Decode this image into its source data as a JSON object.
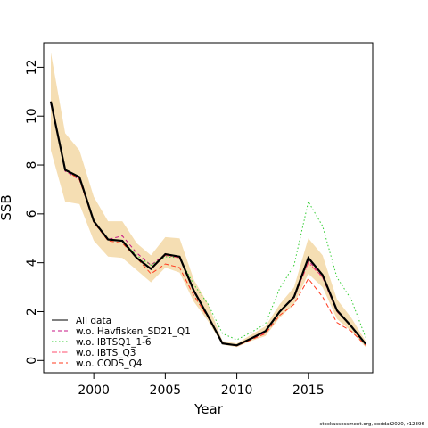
{
  "chart_data": {
    "type": "line",
    "title": "",
    "xlabel": "Year",
    "ylabel": "SSB",
    "xlim": [
      1996.5,
      2019.5
    ],
    "ylim": [
      -0.5,
      13
    ],
    "xticks": [
      2000,
      2005,
      2010,
      2015
    ],
    "yticks": [
      0,
      2,
      4,
      6,
      8,
      10,
      12
    ],
    "legend_position": "bottom-left",
    "x": [
      1997,
      1998,
      1999,
      2000,
      2001,
      2002,
      2003,
      2004,
      2005,
      2006,
      2007,
      2008,
      2009,
      2010,
      2011,
      2012,
      2013,
      2014,
      2015,
      2016,
      2017,
      2018,
      2019
    ],
    "confidence_band": {
      "color": "#f5deb3",
      "lower": [
        8.6,
        6.5,
        6.4,
        4.9,
        4.25,
        4.2,
        3.7,
        3.2,
        3.8,
        3.6,
        2.4,
        1.6,
        0.65,
        0.55,
        0.8,
        1.0,
        1.75,
        2.3,
        3.55,
        3.0,
        1.7,
        1.2,
        0.55
      ],
      "upper": [
        12.6,
        9.3,
        8.6,
        6.7,
        5.7,
        5.7,
        4.8,
        4.3,
        5.05,
        5.0,
        3.3,
        2.3,
        0.8,
        0.7,
        1.05,
        1.4,
        2.3,
        3.0,
        5.0,
        4.3,
        2.5,
        1.75,
        0.8
      ]
    },
    "series": [
      {
        "name": "All data",
        "color": "#000000",
        "values": [
          10.6,
          7.8,
          7.5,
          5.7,
          4.95,
          4.9,
          4.2,
          3.75,
          4.35,
          4.25,
          2.85,
          1.8,
          0.7,
          0.62,
          0.9,
          1.2,
          2.0,
          2.6,
          4.2,
          3.5,
          2.05,
          1.4,
          0.68
        ]
      },
      {
        "name": "w.o. Havfisken_SD21_Q1",
        "color": "#c71585",
        "values": [
          10.6,
          7.75,
          7.4,
          5.7,
          4.95,
          5.1,
          4.4,
          3.9,
          4.35,
          4.2,
          2.8,
          1.8,
          0.7,
          0.6,
          0.88,
          1.15,
          2.0,
          2.6,
          4.1,
          3.4,
          2.0,
          1.4,
          0.66
        ]
      },
      {
        "name": "w.o. IBTSQ1_1-6",
        "color": "#32cd32",
        "values": [
          10.6,
          7.8,
          7.5,
          5.7,
          4.95,
          4.9,
          4.3,
          3.9,
          4.25,
          4.2,
          3.1,
          2.3,
          1.1,
          0.85,
          1.15,
          1.5,
          2.95,
          3.9,
          6.5,
          5.5,
          3.4,
          2.5,
          0.95
        ]
      },
      {
        "name": "w.o. IBTS_Q3",
        "color": "#ff4d6d",
        "values": [
          10.5,
          7.8,
          7.5,
          5.7,
          4.95,
          4.9,
          4.2,
          3.75,
          4.3,
          4.2,
          2.85,
          1.8,
          0.7,
          0.62,
          0.9,
          1.2,
          2.0,
          2.55,
          4.0,
          3.4,
          2.0,
          1.4,
          0.66
        ]
      },
      {
        "name": "w.o. CODS_Q4",
        "color": "#ff3b1f",
        "values": [
          10.6,
          7.8,
          7.4,
          5.65,
          4.9,
          4.8,
          4.2,
          3.55,
          3.95,
          3.8,
          2.65,
          1.75,
          0.72,
          0.6,
          0.85,
          1.1,
          1.85,
          2.3,
          3.35,
          2.6,
          1.55,
          1.2,
          0.62
        ]
      }
    ]
  },
  "credit": "stockassessment.org, coddat2020, r12396"
}
